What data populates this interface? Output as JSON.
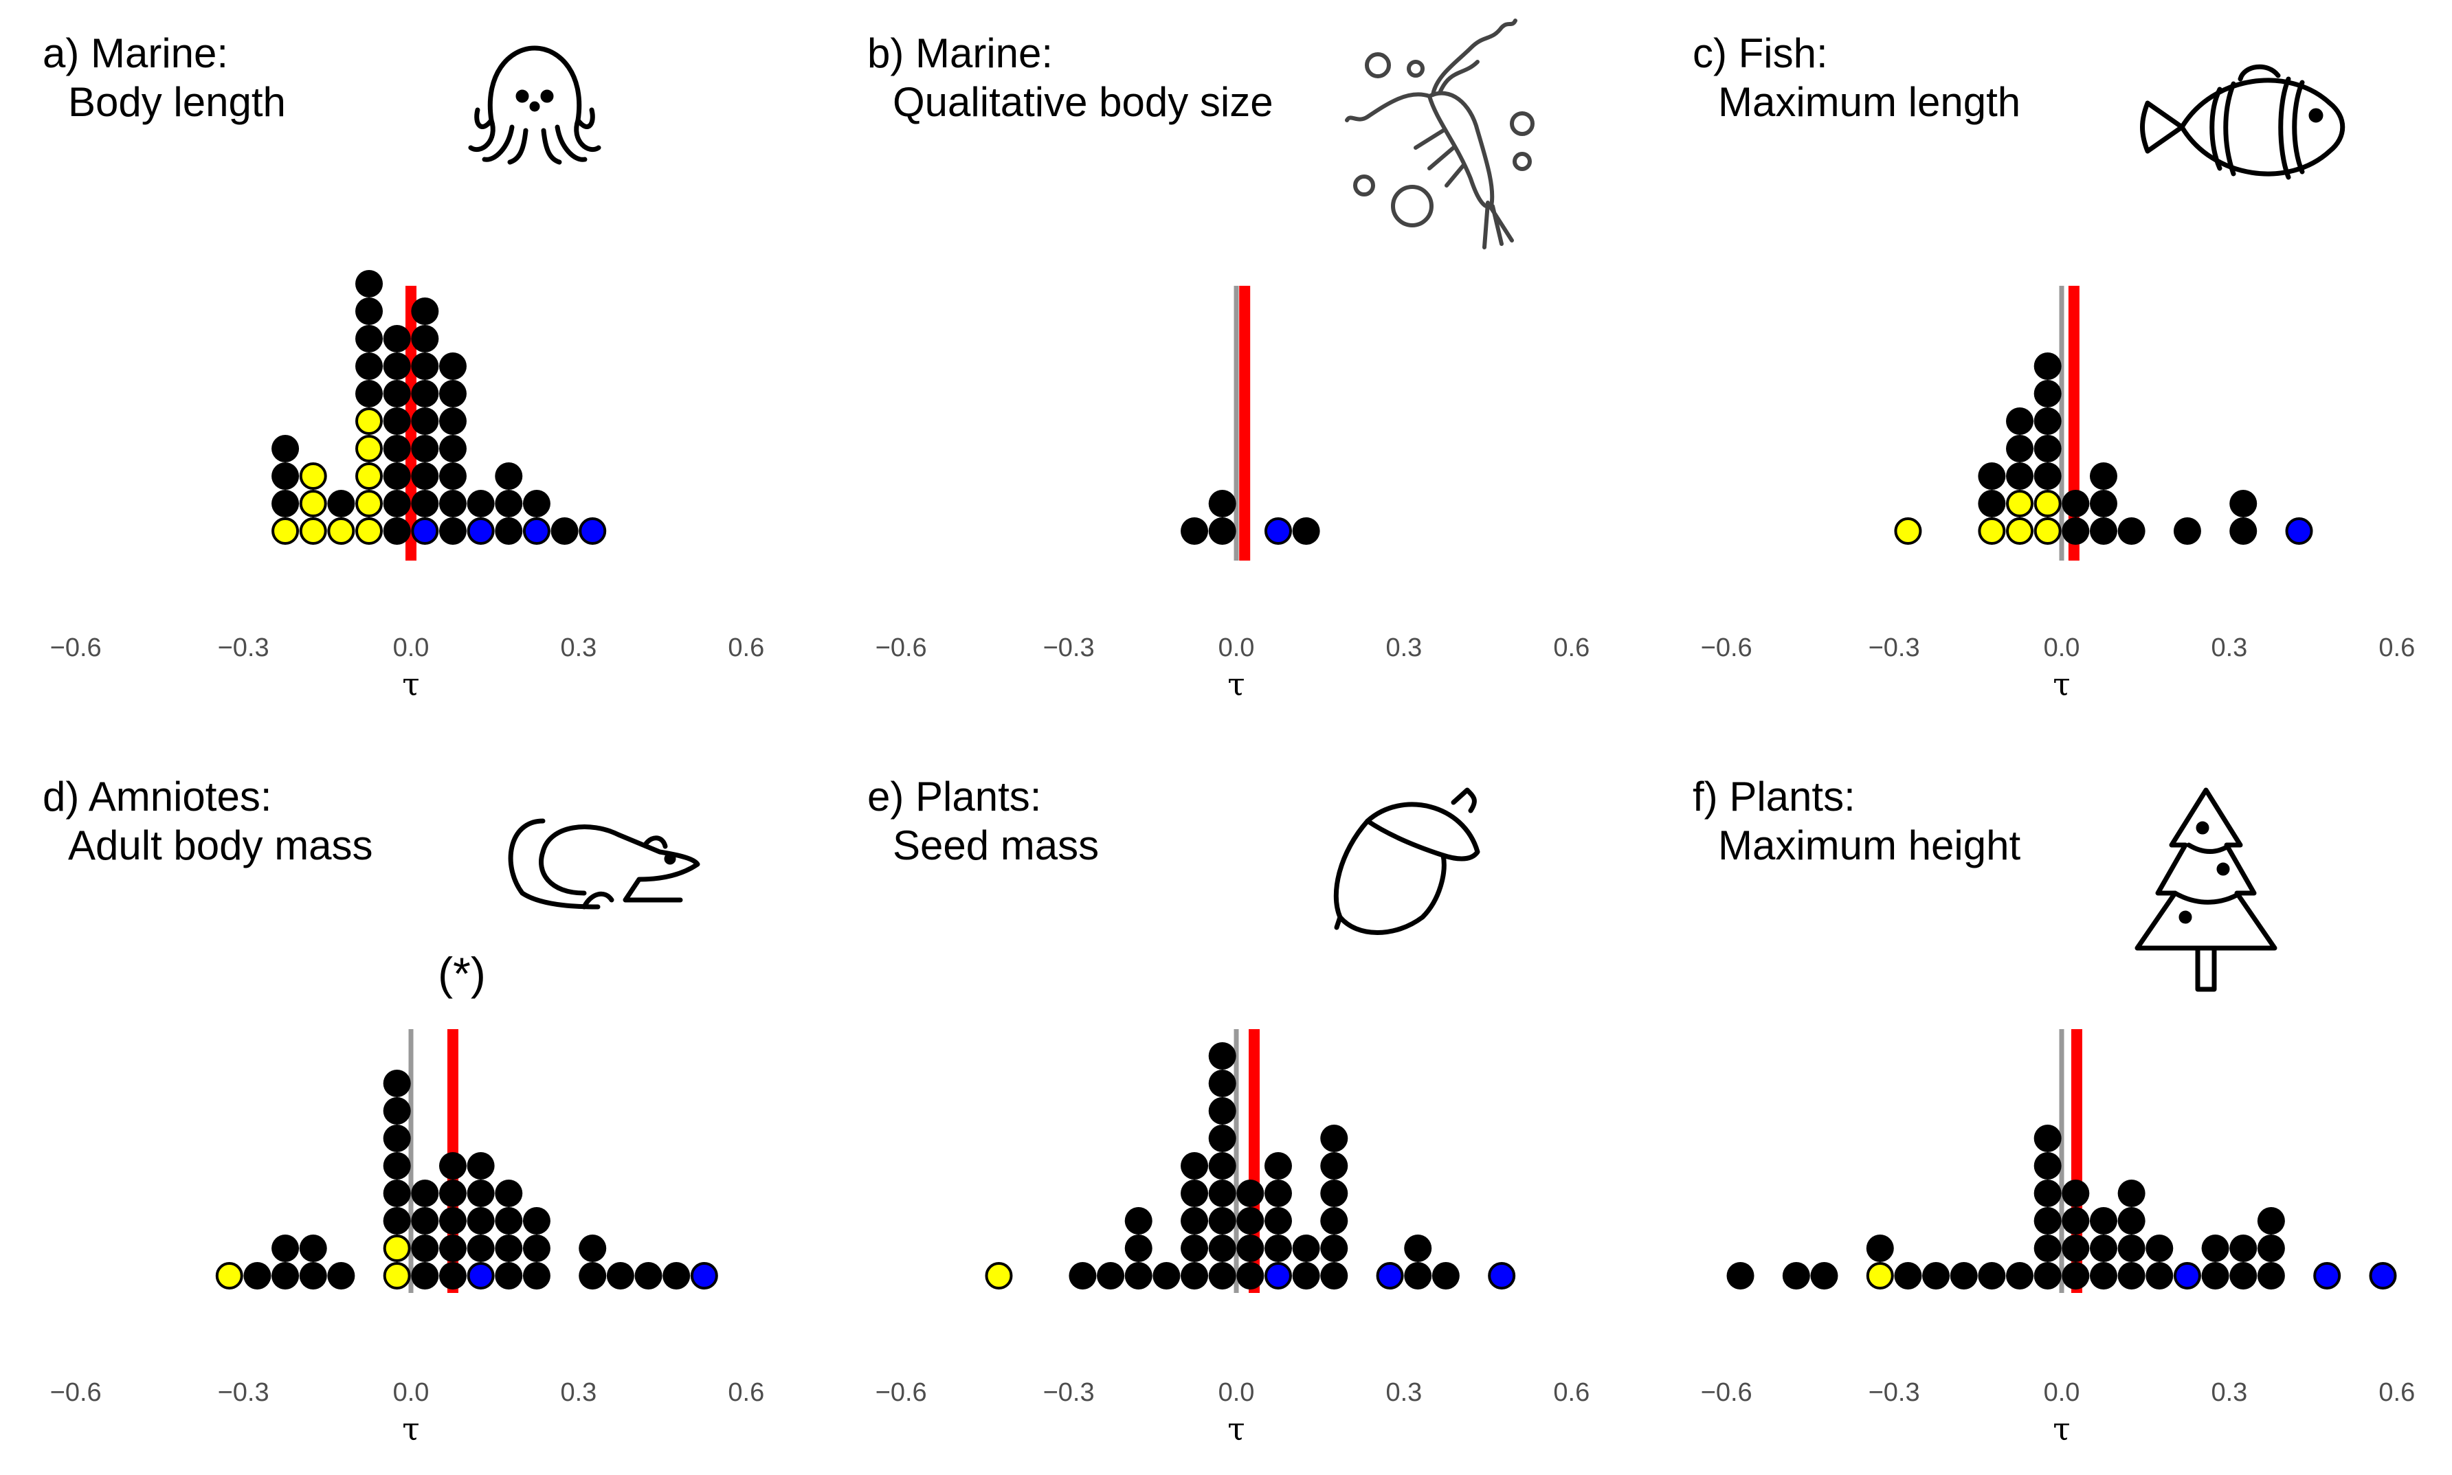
{
  "colors": {
    "K": "#000000",
    "Y": "#ffff00",
    "B": "#0000ff",
    "mean_line": "#ff0000",
    "zero_line": "#999999"
  },
  "chart_data": [
    {
      "type": "dotplot",
      "panel": "a",
      "title": "a) Marine:",
      "subtitle": "Body length",
      "icon": "octopus-icon",
      "xlabel": "τ",
      "xlim": [
        -0.6,
        0.6
      ],
      "xticks": [
        "−0.6",
        "−0.3",
        "0.0",
        "0.3",
        "0.6"
      ],
      "xtick_values": [
        -0.6,
        -0.3,
        0,
        0.3,
        0.6
      ],
      "mean": 0.0,
      "note": "",
      "bins": [
        {
          "x": -0.225,
          "stack": "YKKK"
        },
        {
          "x": -0.175,
          "stack": "YYY"
        },
        {
          "x": -0.125,
          "stack": "YK"
        },
        {
          "x": -0.075,
          "stack": "YYYYYKKKKK"
        },
        {
          "x": -0.025,
          "stack": "KKKKKKKK"
        },
        {
          "x": 0.025,
          "stack": "BKKKKKKKK"
        },
        {
          "x": 0.075,
          "stack": "KKKKKKK"
        },
        {
          "x": 0.125,
          "stack": "BK"
        },
        {
          "x": 0.175,
          "stack": "KKK"
        },
        {
          "x": 0.225,
          "stack": "BK"
        },
        {
          "x": 0.275,
          "stack": "K"
        },
        {
          "x": 0.325,
          "stack": "B"
        }
      ]
    },
    {
      "type": "dotplot",
      "panel": "b",
      "title": "b) Marine:",
      "subtitle": "Qualitative body size",
      "icon": "krill-icon",
      "xlabel": "τ",
      "xlim": [
        -0.6,
        0.6
      ],
      "xticks": [
        "−0.6",
        "−0.3",
        "0.0",
        "0.3",
        "0.6"
      ],
      "xtick_values": [
        -0.6,
        -0.3,
        0,
        0.3,
        0.6
      ],
      "mean": 0.015,
      "note": "",
      "bins": [
        {
          "x": -0.075,
          "stack": "K"
        },
        {
          "x": -0.025,
          "stack": "KK"
        },
        {
          "x": 0.075,
          "stack": "B"
        },
        {
          "x": 0.125,
          "stack": "K"
        }
      ]
    },
    {
      "type": "dotplot",
      "panel": "c",
      "title": "c) Fish:",
      "subtitle": "Maximum length",
      "icon": "clownfish-icon",
      "xlabel": "τ",
      "xlim": [
        -0.6,
        0.6
      ],
      "xticks": [
        "−0.6",
        "−0.3",
        "0.0",
        "0.3",
        "0.6"
      ],
      "xtick_values": [
        -0.6,
        -0.3,
        0,
        0.3,
        0.6
      ],
      "mean": 0.022,
      "note": "",
      "bins": [
        {
          "x": -0.275,
          "stack": "Y"
        },
        {
          "x": -0.125,
          "stack": "YKK"
        },
        {
          "x": -0.075,
          "stack": "YYKKK"
        },
        {
          "x": -0.025,
          "stack": "YYKKKKK"
        },
        {
          "x": 0.025,
          "stack": "KK"
        },
        {
          "x": 0.075,
          "stack": "KKK"
        },
        {
          "x": 0.125,
          "stack": "K"
        },
        {
          "x": 0.225,
          "stack": "K"
        },
        {
          "x": 0.325,
          "stack": "KK"
        },
        {
          "x": 0.425,
          "stack": "B"
        }
      ]
    },
    {
      "type": "dotplot",
      "panel": "d",
      "title": "d) Amniotes:",
      "subtitle": "Adult body mass",
      "icon": "mouse-icon",
      "xlabel": "τ",
      "xlim": [
        -0.6,
        0.6
      ],
      "xticks": [
        "−0.6",
        "−0.3",
        "0.0",
        "0.3",
        "0.6"
      ],
      "xtick_values": [
        -0.6,
        -0.3,
        0,
        0.3,
        0.6
      ],
      "mean": 0.075,
      "note": "(*)",
      "bins": [
        {
          "x": -0.325,
          "stack": "Y"
        },
        {
          "x": -0.275,
          "stack": "K"
        },
        {
          "x": -0.225,
          "stack": "KK"
        },
        {
          "x": -0.175,
          "stack": "KK"
        },
        {
          "x": -0.125,
          "stack": "K"
        },
        {
          "x": -0.025,
          "stack": "YYKKKKKK"
        },
        {
          "x": 0.025,
          "stack": "KKKK"
        },
        {
          "x": 0.075,
          "stack": "KKKKK"
        },
        {
          "x": 0.125,
          "stack": "BKKKK"
        },
        {
          "x": 0.175,
          "stack": "KKKK"
        },
        {
          "x": 0.225,
          "stack": "KKK"
        },
        {
          "x": 0.325,
          "stack": "KK"
        },
        {
          "x": 0.375,
          "stack": "K"
        },
        {
          "x": 0.425,
          "stack": "K"
        },
        {
          "x": 0.475,
          "stack": "K"
        },
        {
          "x": 0.525,
          "stack": "B"
        }
      ]
    },
    {
      "type": "dotplot",
      "panel": "e",
      "title": "e) Plants:",
      "subtitle": "Seed mass",
      "icon": "acorn-icon",
      "xlabel": "τ",
      "xlim": [
        -0.6,
        0.6
      ],
      "xticks": [
        "−0.6",
        "−0.3",
        "0.0",
        "0.3",
        "0.6"
      ],
      "xtick_values": [
        -0.6,
        -0.3,
        0,
        0.3,
        0.6
      ],
      "mean": 0.032,
      "note": "",
      "bins": [
        {
          "x": -0.425,
          "stack": "Y"
        },
        {
          "x": -0.275,
          "stack": "K"
        },
        {
          "x": -0.225,
          "stack": "K"
        },
        {
          "x": -0.175,
          "stack": "KKK"
        },
        {
          "x": -0.125,
          "stack": "K"
        },
        {
          "x": -0.075,
          "stack": "KKKKK"
        },
        {
          "x": -0.025,
          "stack": "KKKKKKKKK"
        },
        {
          "x": 0.025,
          "stack": "KKKK"
        },
        {
          "x": 0.075,
          "stack": "BKKKK"
        },
        {
          "x": 0.125,
          "stack": "KK"
        },
        {
          "x": 0.175,
          "stack": "KKKKKK"
        },
        {
          "x": 0.275,
          "stack": "B"
        },
        {
          "x": 0.325,
          "stack": "KK"
        },
        {
          "x": 0.375,
          "stack": "K"
        },
        {
          "x": 0.475,
          "stack": "B"
        }
      ]
    },
    {
      "type": "dotplot",
      "panel": "f",
      "title": "f) Plants:",
      "subtitle": "Maximum height",
      "icon": "christmas-tree-icon",
      "xlabel": "τ",
      "xlim": [
        -0.6,
        0.6
      ],
      "xticks": [
        "−0.6",
        "−0.3",
        "0.0",
        "0.3",
        "0.6"
      ],
      "xtick_values": [
        -0.6,
        -0.3,
        0,
        0.3,
        0.6
      ],
      "mean": 0.027,
      "note": "",
      "bins": [
        {
          "x": -0.575,
          "stack": "K"
        },
        {
          "x": -0.475,
          "stack": "K"
        },
        {
          "x": -0.425,
          "stack": "K"
        },
        {
          "x": -0.325,
          "stack": "YK"
        },
        {
          "x": -0.275,
          "stack": "K"
        },
        {
          "x": -0.225,
          "stack": "K"
        },
        {
          "x": -0.175,
          "stack": "K"
        },
        {
          "x": -0.125,
          "stack": "K"
        },
        {
          "x": -0.075,
          "stack": "K"
        },
        {
          "x": -0.025,
          "stack": "KKKKKK"
        },
        {
          "x": 0.025,
          "stack": "KKKK"
        },
        {
          "x": 0.075,
          "stack": "KKK"
        },
        {
          "x": 0.125,
          "stack": "KKKK"
        },
        {
          "x": 0.175,
          "stack": "KK"
        },
        {
          "x": 0.225,
          "stack": "B"
        },
        {
          "x": 0.275,
          "stack": "KK"
        },
        {
          "x": 0.325,
          "stack": "KK"
        },
        {
          "x": 0.375,
          "stack": "KKK"
        },
        {
          "x": 0.475,
          "stack": "B"
        },
        {
          "x": 0.575,
          "stack": "B"
        }
      ]
    }
  ]
}
